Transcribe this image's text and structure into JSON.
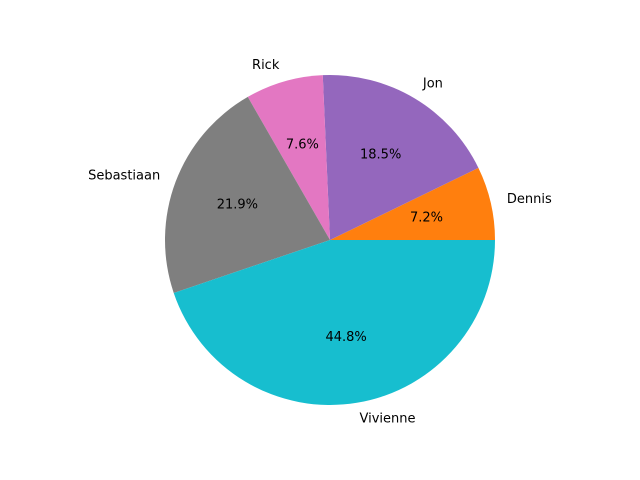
{
  "chart_data": {
    "type": "pie",
    "title": "",
    "slices": [
      {
        "label": "Dennis",
        "percent_label": "7.2%",
        "value": 7.2,
        "color": "#ff7f0e"
      },
      {
        "label": "Jon",
        "percent_label": "18.5%",
        "value": 18.5,
        "color": "#9467bd"
      },
      {
        "label": "Rick",
        "percent_label": "7.6%",
        "value": 7.6,
        "color": "#e377c2"
      },
      {
        "label": "Sebastiaan",
        "percent_label": "21.9%",
        "value": 21.9,
        "color": "#7f7f7f"
      },
      {
        "label": "Vivienne",
        "percent_label": "44.8%",
        "value": 44.8,
        "color": "#17becf"
      }
    ],
    "start_angle_deg": 0,
    "direction": "counterclockwise",
    "legend": "none"
  }
}
